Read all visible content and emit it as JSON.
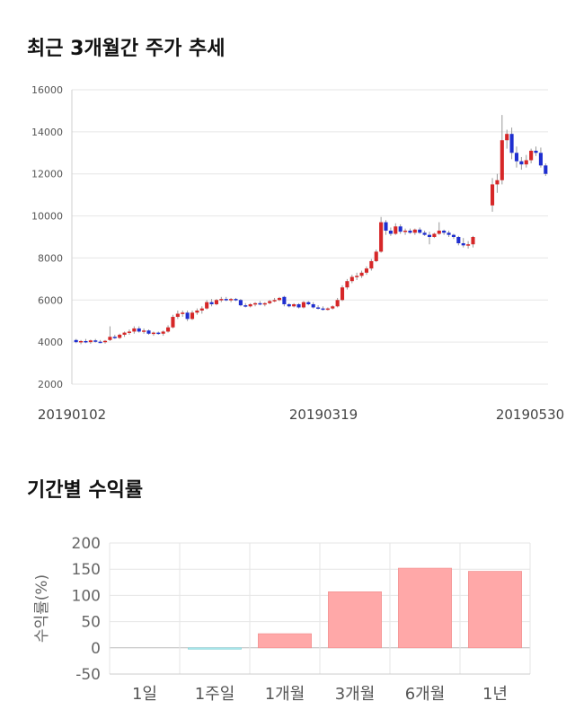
{
  "price_section": {
    "title": "최근 3개월간 주가 추세"
  },
  "returns_section": {
    "title": "기간별 수익률"
  },
  "chart_data": [
    {
      "type": "candlestick",
      "title": "최근 3개월간 주가 추세",
      "y_ticks": [
        "16000",
        "14000",
        "12000",
        "10000",
        "8000",
        "6000",
        "4000",
        "2000"
      ],
      "ylim": [
        2000,
        16000
      ],
      "x_tick_labels": [
        "20190102",
        "20190319",
        "20190530"
      ],
      "grid": true,
      "colors": {
        "up": "#d62728",
        "down": "#1f2fd0"
      },
      "candles": [
        [
          4100,
          4150,
          3950,
          4000
        ],
        [
          4000,
          4100,
          3900,
          4050
        ],
        [
          4050,
          4150,
          3950,
          4000
        ],
        [
          4000,
          4120,
          3920,
          4080
        ],
        [
          4080,
          4150,
          3980,
          4020
        ],
        [
          4020,
          4100,
          3950,
          4000
        ],
        [
          4000,
          4100,
          3930,
          4060
        ],
        [
          4100,
          4750,
          4050,
          4250
        ],
        [
          4250,
          4350,
          4150,
          4200
        ],
        [
          4200,
          4400,
          4150,
          4350
        ],
        [
          4350,
          4500,
          4250,
          4450
        ],
        [
          4450,
          4600,
          4350,
          4500
        ],
        [
          4500,
          4750,
          4400,
          4650
        ],
        [
          4650,
          4750,
          4450,
          4500
        ],
        [
          4500,
          4650,
          4400,
          4550
        ],
        [
          4550,
          4600,
          4350,
          4400
        ],
        [
          4400,
          4500,
          4300,
          4450
        ],
        [
          4450,
          4500,
          4350,
          4400
        ],
        [
          4400,
          4550,
          4300,
          4500
        ],
        [
          4500,
          4800,
          4450,
          4700
        ],
        [
          4700,
          5300,
          4650,
          5200
        ],
        [
          5200,
          5500,
          5100,
          5350
        ],
        [
          5350,
          5500,
          5200,
          5400
        ],
        [
          5400,
          5500,
          5000,
          5100
        ],
        [
          5100,
          5500,
          5050,
          5400
        ],
        [
          5400,
          5600,
          5300,
          5500
        ],
        [
          5500,
          5700,
          5350,
          5600
        ],
        [
          5600,
          6000,
          5550,
          5900
        ],
        [
          5900,
          6050,
          5700,
          5800
        ],
        [
          5800,
          6050,
          5750,
          6000
        ],
        [
          6000,
          6150,
          5900,
          6050
        ],
        [
          6050,
          6150,
          5950,
          6000
        ],
        [
          6000,
          6100,
          5900,
          6050
        ],
        [
          6050,
          6100,
          5950,
          6000
        ],
        [
          6000,
          6050,
          5700,
          5750
        ],
        [
          5750,
          5850,
          5650,
          5700
        ],
        [
          5700,
          5850,
          5650,
          5800
        ],
        [
          5800,
          5900,
          5700,
          5850
        ],
        [
          5850,
          5950,
          5750,
          5800
        ],
        [
          5800,
          5900,
          5700,
          5850
        ],
        [
          5850,
          6000,
          5800,
          5950
        ],
        [
          5950,
          6100,
          5900,
          6000
        ],
        [
          6000,
          6150,
          5950,
          6100
        ],
        [
          6150,
          6200,
          5700,
          5800
        ],
        [
          5800,
          5850,
          5650,
          5700
        ],
        [
          5700,
          5850,
          5650,
          5800
        ],
        [
          5800,
          5850,
          5600,
          5650
        ],
        [
          5650,
          5950,
          5600,
          5900
        ],
        [
          5900,
          5950,
          5750,
          5800
        ],
        [
          5800,
          5900,
          5600,
          5650
        ],
        [
          5650,
          5750,
          5550,
          5600
        ],
        [
          5600,
          5700,
          5500,
          5550
        ],
        [
          5550,
          5650,
          5500,
          5600
        ],
        [
          5600,
          5750,
          5550,
          5700
        ],
        [
          5700,
          6100,
          5650,
          6000
        ],
        [
          6000,
          6700,
          5950,
          6600
        ],
        [
          6600,
          7000,
          6500,
          6900
        ],
        [
          6900,
          7200,
          6800,
          7100
        ],
        [
          7100,
          7300,
          6950,
          7150
        ],
        [
          7150,
          7400,
          7050,
          7300
        ],
        [
          7300,
          7600,
          7200,
          7500
        ],
        [
          7500,
          7950,
          7400,
          7850
        ],
        [
          7850,
          8400,
          7800,
          8300
        ],
        [
          8300,
          9950,
          8250,
          9700
        ],
        [
          9700,
          9800,
          9100,
          9300
        ],
        [
          9300,
          9450,
          9050,
          9150
        ],
        [
          9150,
          9650,
          9100,
          9500
        ],
        [
          9500,
          9600,
          9150,
          9250
        ],
        [
          9250,
          9400,
          9100,
          9300
        ],
        [
          9300,
          9400,
          9150,
          9200
        ],
        [
          9200,
          9400,
          9100,
          9350
        ],
        [
          9350,
          9450,
          9150,
          9200
        ],
        [
          9200,
          9300,
          9050,
          9100
        ],
        [
          9100,
          9250,
          8650,
          9000
        ],
        [
          9000,
          9200,
          8950,
          9150
        ],
        [
          9150,
          9700,
          9100,
          9300
        ],
        [
          9300,
          9350,
          9100,
          9200
        ],
        [
          9200,
          9300,
          9000,
          9100
        ],
        [
          9100,
          9150,
          8900,
          9000
        ],
        [
          9000,
          9050,
          8600,
          8700
        ],
        [
          8700,
          8950,
          8500,
          8600
        ],
        [
          8600,
          8800,
          8450,
          8650
        ],
        [
          8650,
          9050,
          8500,
          9000
        ],
        [
          10500,
          11800,
          10200,
          11500
        ],
        [
          11500,
          12000,
          11100,
          11700
        ],
        [
          11700,
          14800,
          11500,
          13600
        ],
        [
          13600,
          14100,
          13200,
          13900
        ],
        [
          13900,
          14200,
          12700,
          13000
        ],
        [
          13000,
          13300,
          12300,
          12600
        ],
        [
          12600,
          12800,
          12200,
          12450
        ],
        [
          12450,
          12900,
          12300,
          12650
        ],
        [
          12650,
          13200,
          12500,
          13100
        ],
        [
          13100,
          13300,
          12850,
          13000
        ],
        [
          13000,
          13250,
          12300,
          12400
        ],
        [
          12400,
          12500,
          11900,
          12000
        ]
      ]
    },
    {
      "type": "bar",
      "title": "기간별 수익률",
      "categories": [
        "1일",
        "1주일",
        "1개월",
        "3개월",
        "6개월",
        "1년"
      ],
      "values": [
        0,
        -2,
        27,
        107,
        152,
        146
      ],
      "ylabel": "수익률(%)",
      "y_ticks": [
        "200",
        "150",
        "100",
        "50",
        "0",
        "-50"
      ],
      "ylim": [
        -50,
        200
      ],
      "grid": true,
      "colors": {
        "positive": "#ffa8a8",
        "negative": "#a8e8ec"
      }
    }
  ]
}
